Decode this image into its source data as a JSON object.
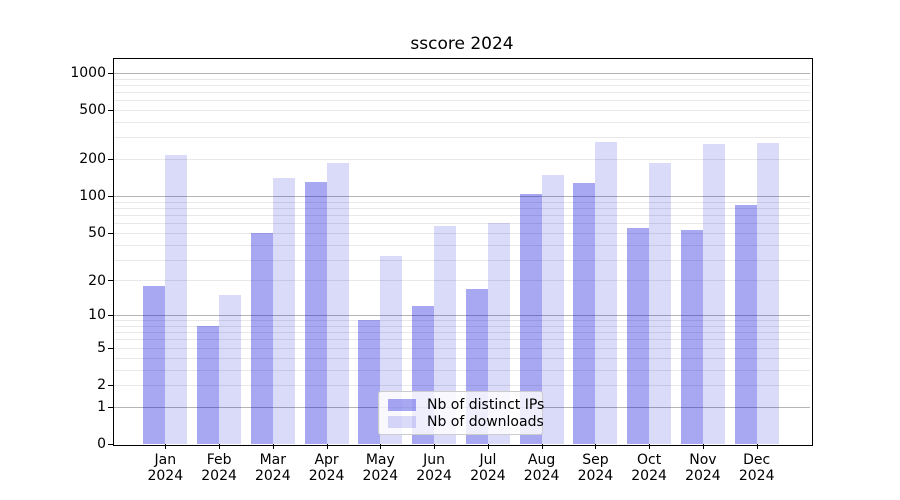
{
  "title": "sscore 2024",
  "chart_data": {
    "type": "bar",
    "title": "sscore 2024",
    "categories": [
      "Jan",
      "Feb",
      "Mar",
      "Apr",
      "May",
      "Jun",
      "Jul",
      "Aug",
      "Sep",
      "Oct",
      "Nov",
      "Dec"
    ],
    "x_tick_second_line": "2024",
    "series": [
      {
        "name": "Nb of distinct IPs",
        "color": "#a8a8f2",
        "rgba": "rgba(6,6,218,0.35)",
        "values": [
          18,
          8,
          50,
          130,
          9,
          12,
          17,
          105,
          128,
          55,
          53,
          85
        ]
      },
      {
        "name": "Nb of downloads",
        "color": "#dadaf8",
        "rgba": "rgba(6,6,218,0.15)",
        "values": [
          215,
          15,
          140,
          185,
          32,
          57,
          60,
          150,
          275,
          185,
          265,
          270
        ]
      }
    ],
    "yscale": "log1p",
    "y_ticks": [
      0,
      1,
      2,
      5,
      10,
      20,
      50,
      100,
      200,
      500,
      1000
    ],
    "ylim": [
      0,
      1250
    ],
    "xlabel": "",
    "ylabel": "",
    "grid": true,
    "legend_position": "lower center"
  },
  "colors": {
    "grid_major": "#b4b4b4",
    "grid_minor": "#e8e8e8",
    "axis": "#000000",
    "legend_border": "#cccccc",
    "background": "#ffffff"
  }
}
